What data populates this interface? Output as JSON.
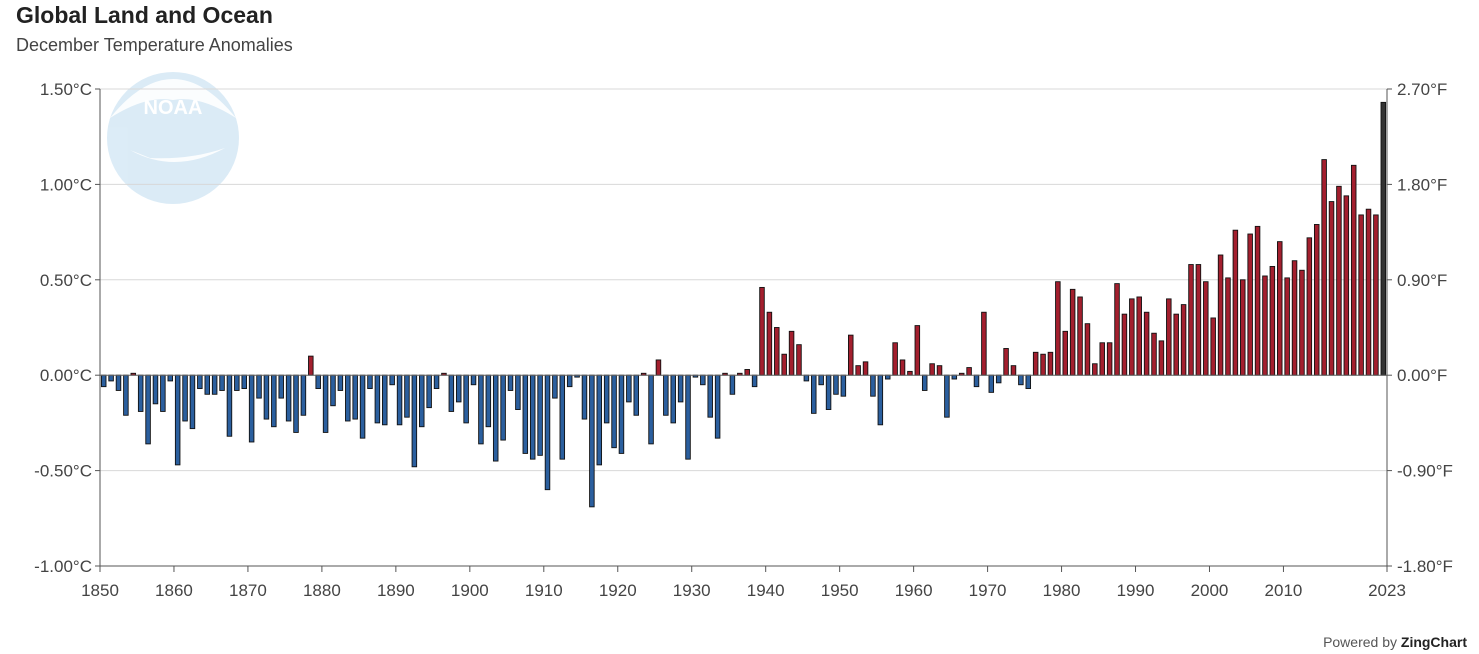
{
  "title": "Global Land and Ocean",
  "subtitle": "December Temperature Anomalies",
  "footer": {
    "prefix": "Powered by",
    "brand": "ZingChart"
  },
  "logo": {
    "text": "NOAA",
    "icon": "noaa-logo-icon"
  },
  "chart_data": {
    "type": "bar",
    "title": "Global Land and Ocean",
    "subtitle": "December Temperature Anomalies",
    "xlabel": "",
    "ylabel": "",
    "x_start": 1850,
    "x_end": 2023,
    "x_ticks": [
      "1850",
      "1860",
      "1870",
      "1880",
      "1890",
      "1900",
      "1910",
      "1920",
      "1930",
      "1940",
      "1950",
      "1960",
      "1970",
      "1980",
      "1990",
      "2000",
      "2010",
      "2023"
    ],
    "ylim": [
      -1.0,
      1.5
    ],
    "y_ticks_left": [
      "1.50°C",
      "1.00°C",
      "0.50°C",
      "0.00°C",
      "-0.50°C",
      "-1.00°C"
    ],
    "y_ticks_right": [
      "2.70°F",
      "1.80°F",
      "0.90°F",
      "0.00°F",
      "-0.90°F",
      "-1.80°F"
    ],
    "grid": true,
    "colors": {
      "negative": "#2b5f9e",
      "positive": "#a31f2e",
      "latest": "#333333",
      "edge": "#111111"
    },
    "values": [
      -0.06,
      -0.03,
      -0.08,
      -0.21,
      0.01,
      -0.19,
      -0.36,
      -0.15,
      -0.19,
      -0.03,
      -0.47,
      -0.24,
      -0.28,
      -0.07,
      -0.1,
      -0.1,
      -0.08,
      -0.32,
      -0.08,
      -0.07,
      -0.35,
      -0.12,
      -0.23,
      -0.27,
      -0.12,
      -0.24,
      -0.3,
      -0.21,
      0.1,
      -0.07,
      -0.3,
      -0.16,
      -0.08,
      -0.24,
      -0.23,
      -0.33,
      -0.07,
      -0.25,
      -0.26,
      -0.05,
      -0.26,
      -0.22,
      -0.48,
      -0.27,
      -0.17,
      -0.07,
      0.01,
      -0.19,
      -0.14,
      -0.25,
      -0.05,
      -0.36,
      -0.27,
      -0.45,
      -0.34,
      -0.08,
      -0.18,
      -0.41,
      -0.44,
      -0.42,
      -0.6,
      -0.12,
      -0.44,
      -0.06,
      -0.01,
      -0.23,
      -0.69,
      -0.47,
      -0.25,
      -0.38,
      -0.41,
      -0.14,
      -0.21,
      0.01,
      -0.36,
      0.08,
      -0.21,
      -0.25,
      -0.14,
      -0.44,
      -0.01,
      -0.05,
      -0.22,
      -0.33,
      0.01,
      -0.1,
      0.01,
      0.03,
      -0.06,
      0.46,
      0.33,
      0.25,
      0.11,
      0.23,
      0.16,
      -0.03,
      -0.2,
      -0.05,
      -0.18,
      -0.1,
      -0.11,
      0.21,
      0.05,
      0.07,
      -0.11,
      -0.26,
      -0.02,
      0.17,
      0.08,
      0.02,
      0.26,
      -0.08,
      0.06,
      0.05,
      -0.22,
      -0.02,
      0.01,
      0.04,
      -0.06,
      0.33,
      -0.09,
      -0.04,
      0.14,
      0.05,
      -0.05,
      -0.07,
      0.12,
      0.11,
      0.12,
      0.49,
      0.23,
      0.45,
      0.41,
      0.27,
      0.06,
      0.17,
      0.17,
      0.48,
      0.32,
      0.4,
      0.41,
      0.33,
      0.22,
      0.18,
      0.4,
      0.32,
      0.37,
      0.58,
      0.58,
      0.49,
      0.3,
      0.63,
      0.51,
      0.76,
      0.5,
      0.74,
      0.78,
      0.52,
      0.57,
      0.7,
      0.51,
      0.6,
      0.55,
      0.72,
      0.79,
      1.13,
      0.91,
      0.99,
      0.94,
      1.1,
      0.84,
      0.87,
      0.84,
      1.43
    ]
  }
}
